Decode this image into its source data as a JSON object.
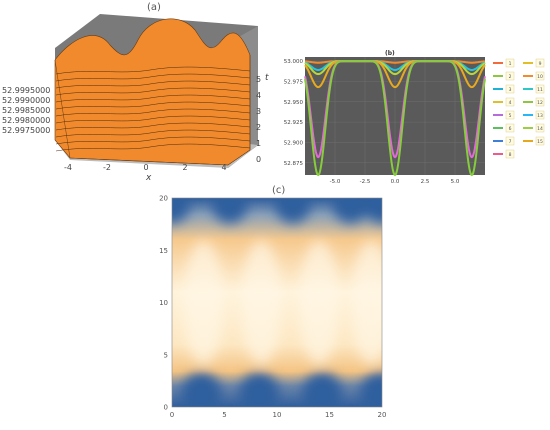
{
  "chart_data": [
    {
      "panel": "(a)",
      "type": "surface",
      "xlabel": "x",
      "ylabel": "t",
      "x_ticks": [
        "-4",
        "-2",
        "0",
        "2",
        "4"
      ],
      "t_ticks": [
        "0",
        "1",
        "2",
        "3",
        "4",
        "5"
      ],
      "z_ticks": [
        "52.9995000",
        "52.9990000",
        "52.9985000",
        "52.9980000",
        "52.9975000"
      ],
      "xlim": [
        -5,
        5
      ],
      "tlim": [
        0,
        5.5
      ],
      "zlim": [
        52.9974,
        52.9998
      ],
      "surface_color": "#f08a2c",
      "floor_color": "#bdbdbd"
    },
    {
      "panel": "(b)",
      "type": "line",
      "title": "(b)",
      "xlim": [
        -7.5,
        7.5
      ],
      "ylim": [
        52.86,
        53.005
      ],
      "x_ticks": [
        "-5.0",
        "-2.5",
        "0.0",
        "2.5",
        "5.0"
      ],
      "y_ticks": [
        "53.000",
        "52.975",
        "52.950",
        "52.925",
        "52.900",
        "52.875"
      ],
      "background": "#5a5a5a",
      "series": [
        {
          "name": "1",
          "color": "#f26b3a",
          "amplitude": 0.0003,
          "min": 53.0
        },
        {
          "name": "2",
          "color": "#8dc63f",
          "amplitude": 0.0006,
          "min": 53.0
        },
        {
          "name": "3",
          "color": "#1eb3d6",
          "amplitude": 0.001,
          "min": 52.999
        },
        {
          "name": "4",
          "color": "#e0c02a",
          "amplitude": 0.0015,
          "min": 52.999
        },
        {
          "name": "5",
          "color": "#b66dd9",
          "amplitude": 0.002,
          "min": 52.998
        },
        {
          "name": "6",
          "color": "#5bbf5b",
          "amplitude": 0.003,
          "min": 52.997
        },
        {
          "name": "7",
          "color": "#3f7fd8",
          "amplitude": 0.004,
          "min": 52.996
        },
        {
          "name": "8",
          "color": "#ef5a8a",
          "amplitude": 0.005,
          "min": 52.995
        },
        {
          "name": "9",
          "color": "#e2bf24",
          "amplitude": 0.006,
          "min": 52.994
        },
        {
          "name": "10",
          "color": "#f48a2a",
          "amplitude": 0.008,
          "min": 52.992
        },
        {
          "name": "11",
          "color": "#2ec7c7",
          "amplitude": 0.01,
          "min": 52.988
        },
        {
          "name": "12",
          "color": "#8dc63f",
          "amplitude": 0.012,
          "min": 52.985
        },
        {
          "name": "13",
          "color": "#29b6f6",
          "amplitude": 0.016,
          "min": 52.985
        },
        {
          "name": "14",
          "color": "#9bcf3f",
          "amplitude": 0.02,
          "min": 52.975
        },
        {
          "name": "15",
          "color": "#e8a81e",
          "amplitude": 0.025,
          "min": 52.97
        }
      ],
      "plotted_curves": [
        {
          "color": "#f08a2c",
          "min": 52.998,
          "period_dips": [
            -3.2,
            0,
            3.2
          ]
        },
        {
          "color": "#23c4e0",
          "min": 52.989,
          "period_dips": [
            -3.2,
            0,
            3.2
          ]
        },
        {
          "color": "#b8d63a",
          "min": 52.984,
          "period_dips": [
            -3.2,
            0,
            3.2
          ]
        },
        {
          "color": "#e8a91f",
          "min": 52.968,
          "period_dips": [
            -3.2,
            0,
            3.2
          ]
        },
        {
          "color": "#e26ad8",
          "min": 52.882,
          "period_dips": [
            -3.2,
            0,
            3.2
          ]
        },
        {
          "color": "#86cc3c",
          "min": 52.86,
          "period_dips": [
            -3.2,
            0,
            3.2
          ]
        }
      ]
    },
    {
      "panel": "(c)",
      "type": "heatmap",
      "xlim": [
        0,
        20
      ],
      "ylim": [
        0,
        20
      ],
      "x_ticks": [
        "0",
        "5",
        "10",
        "15",
        "20"
      ],
      "y_ticks": [
        "0",
        "5",
        "10",
        "15",
        "20"
      ],
      "colors": [
        "#2f5e9e",
        "#fbe1b2",
        "#fff5e2"
      ]
    }
  ],
  "labels": {
    "a": "(a)",
    "c": "(c)"
  }
}
